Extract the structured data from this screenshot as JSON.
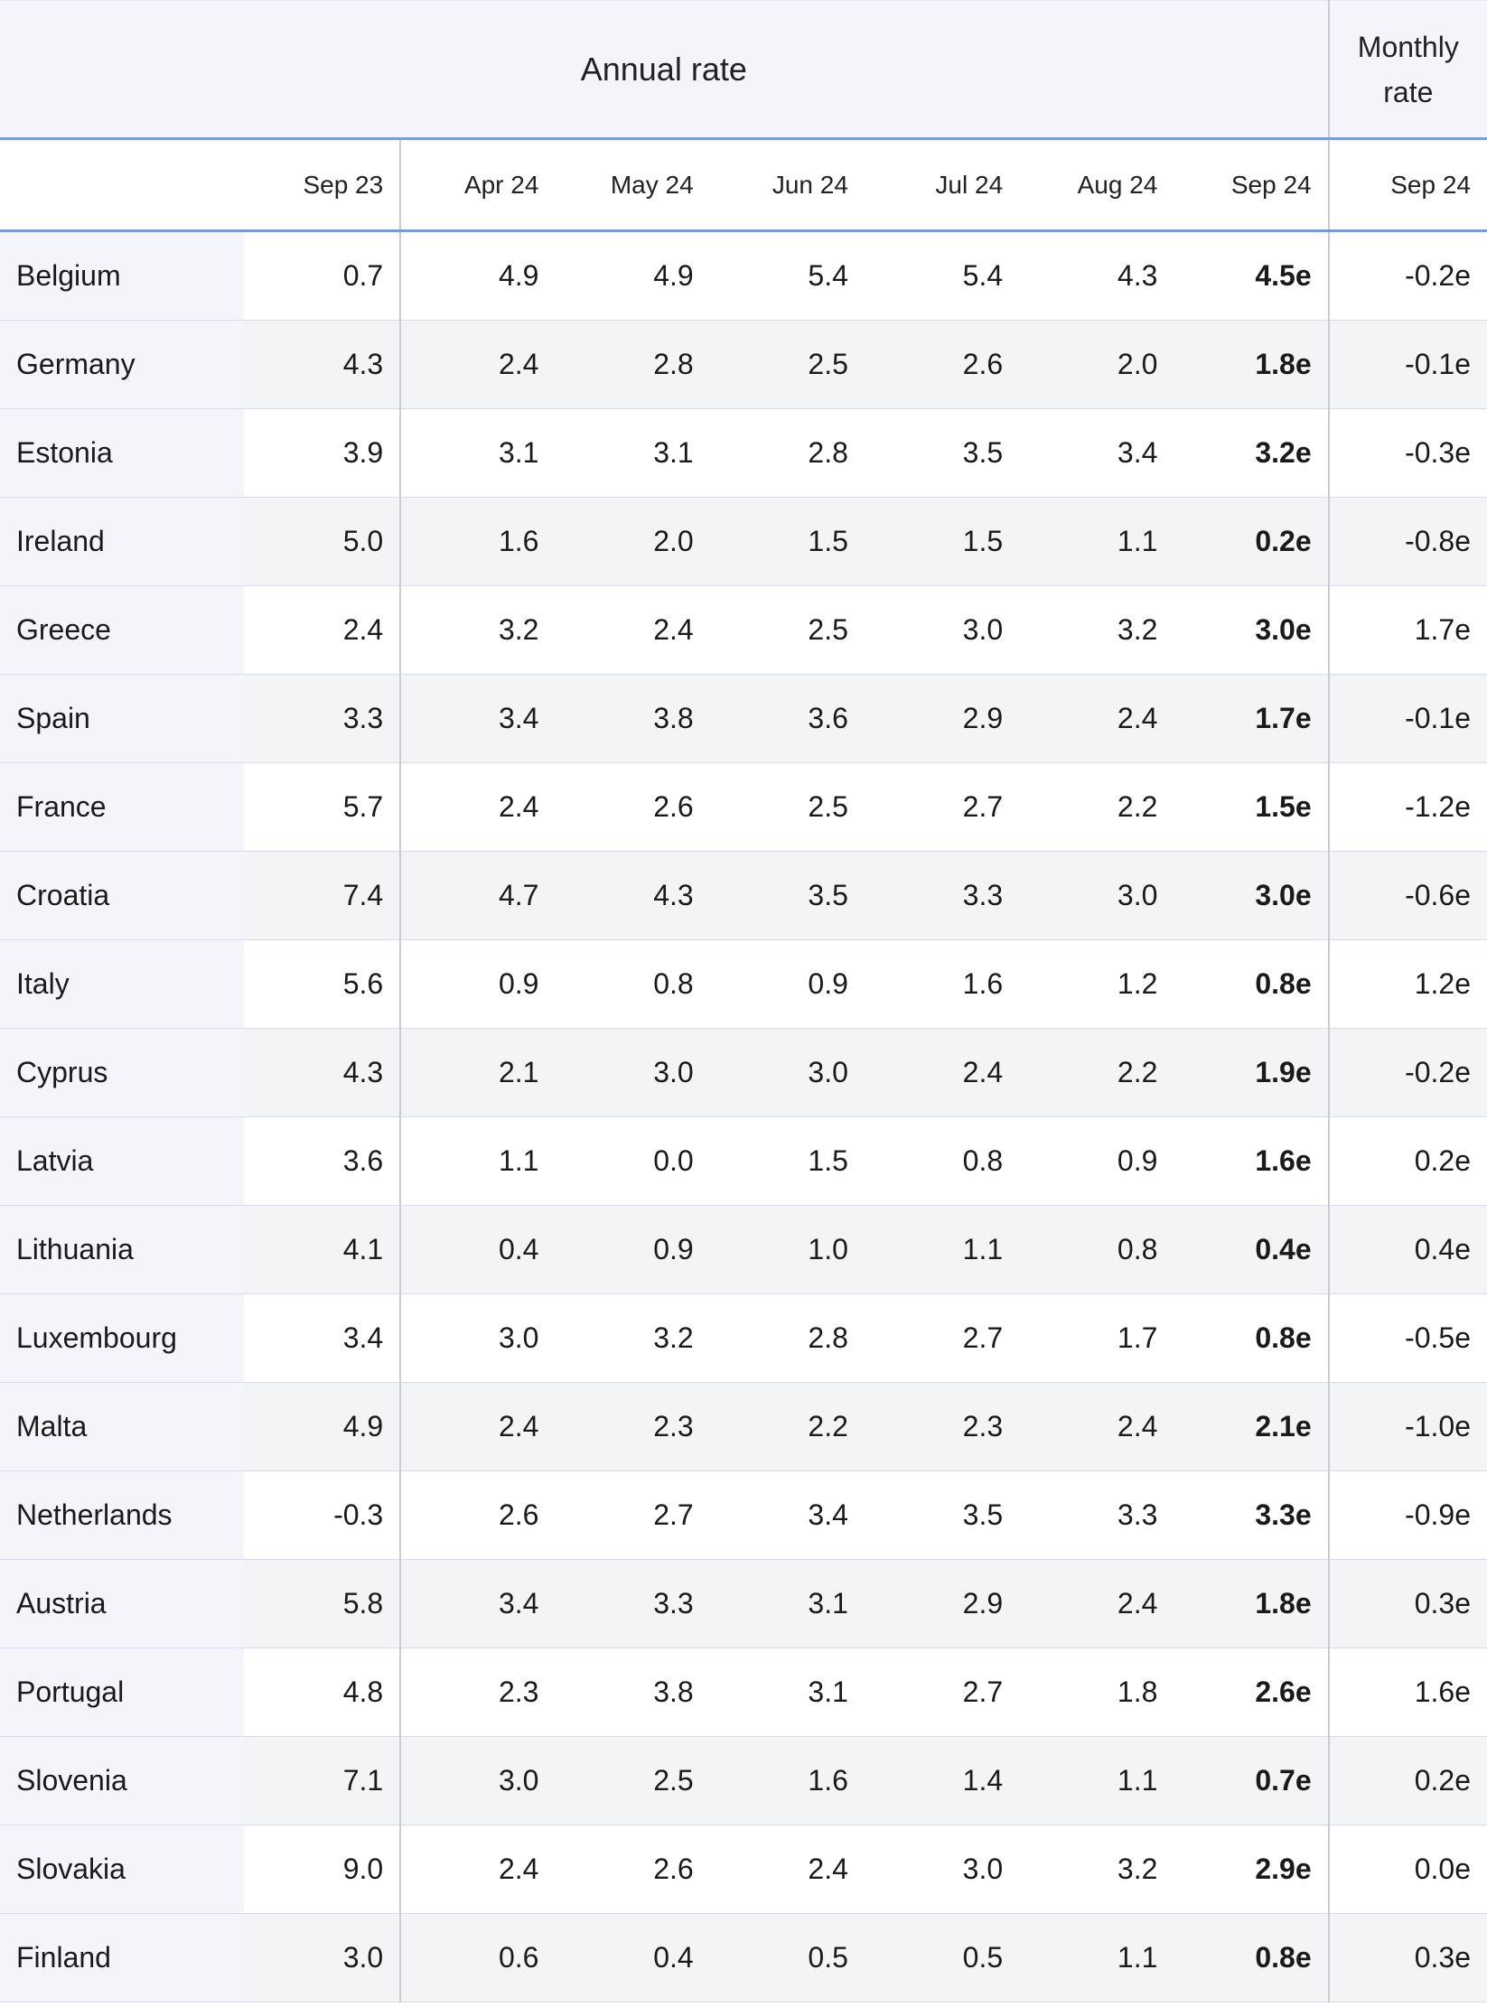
{
  "header": {
    "annual_rate": "Annual rate",
    "monthly_rate": "Monthly rate",
    "months": [
      "Sep 23",
      "Apr 24",
      "May 24",
      "Jun 24",
      "Jul 24",
      "Aug 24",
      "Sep 24"
    ],
    "monthly_month": "Sep 24"
  },
  "rows": [
    {
      "country": "Belgium",
      "values": [
        "0.7",
        "4.9",
        "4.9",
        "5.4",
        "5.4",
        "4.3",
        "4.5e"
      ],
      "monthly": "-0.2e"
    },
    {
      "country": "Germany",
      "values": [
        "4.3",
        "2.4",
        "2.8",
        "2.5",
        "2.6",
        "2.0",
        "1.8e"
      ],
      "monthly": "-0.1e"
    },
    {
      "country": "Estonia",
      "values": [
        "3.9",
        "3.1",
        "3.1",
        "2.8",
        "3.5",
        "3.4",
        "3.2e"
      ],
      "monthly": "-0.3e"
    },
    {
      "country": "Ireland",
      "values": [
        "5.0",
        "1.6",
        "2.0",
        "1.5",
        "1.5",
        "1.1",
        "0.2e"
      ],
      "monthly": "-0.8e"
    },
    {
      "country": "Greece",
      "values": [
        "2.4",
        "3.2",
        "2.4",
        "2.5",
        "3.0",
        "3.2",
        "3.0e"
      ],
      "monthly": "1.7e"
    },
    {
      "country": "Spain",
      "values": [
        "3.3",
        "3.4",
        "3.8",
        "3.6",
        "2.9",
        "2.4",
        "1.7e"
      ],
      "monthly": "-0.1e"
    },
    {
      "country": "France",
      "values": [
        "5.7",
        "2.4",
        "2.6",
        "2.5",
        "2.7",
        "2.2",
        "1.5e"
      ],
      "monthly": "-1.2e"
    },
    {
      "country": "Croatia",
      "values": [
        "7.4",
        "4.7",
        "4.3",
        "3.5",
        "3.3",
        "3.0",
        "3.0e"
      ],
      "monthly": "-0.6e"
    },
    {
      "country": "Italy",
      "values": [
        "5.6",
        "0.9",
        "0.8",
        "0.9",
        "1.6",
        "1.2",
        "0.8e"
      ],
      "monthly": "1.2e"
    },
    {
      "country": "Cyprus",
      "values": [
        "4.3",
        "2.1",
        "3.0",
        "3.0",
        "2.4",
        "2.2",
        "1.9e"
      ],
      "monthly": "-0.2e"
    },
    {
      "country": "Latvia",
      "values": [
        "3.6",
        "1.1",
        "0.0",
        "1.5",
        "0.8",
        "0.9",
        "1.6e"
      ],
      "monthly": "0.2e"
    },
    {
      "country": "Lithuania",
      "values": [
        "4.1",
        "0.4",
        "0.9",
        "1.0",
        "1.1",
        "0.8",
        "0.4e"
      ],
      "monthly": "0.4e"
    },
    {
      "country": "Luxembourg",
      "values": [
        "3.4",
        "3.0",
        "3.2",
        "2.8",
        "2.7",
        "1.7",
        "0.8e"
      ],
      "monthly": "-0.5e"
    },
    {
      "country": "Malta",
      "values": [
        "4.9",
        "2.4",
        "2.3",
        "2.2",
        "2.3",
        "2.4",
        "2.1e"
      ],
      "monthly": "-1.0e"
    },
    {
      "country": "Netherlands",
      "values": [
        "-0.3",
        "2.6",
        "2.7",
        "3.4",
        "3.5",
        "3.3",
        "3.3e"
      ],
      "monthly": "-0.9e"
    },
    {
      "country": "Austria",
      "values": [
        "5.8",
        "3.4",
        "3.3",
        "3.1",
        "2.9",
        "2.4",
        "1.8e"
      ],
      "monthly": "0.3e"
    },
    {
      "country": "Portugal",
      "values": [
        "4.8",
        "2.3",
        "3.8",
        "3.1",
        "2.7",
        "1.8",
        "2.6e"
      ],
      "monthly": "1.6e"
    },
    {
      "country": "Slovenia",
      "values": [
        "7.1",
        "3.0",
        "2.5",
        "1.6",
        "1.4",
        "1.1",
        "0.7e"
      ],
      "monthly": "0.2e"
    },
    {
      "country": "Slovakia",
      "values": [
        "9.0",
        "2.4",
        "2.6",
        "2.4",
        "3.0",
        "3.2",
        "2.9e"
      ],
      "monthly": "0.0e"
    },
    {
      "country": "Finland",
      "values": [
        "3.0",
        "0.6",
        "0.4",
        "0.5",
        "0.5",
        "1.1",
        "0.8e"
      ],
      "monthly": "0.3e"
    }
  ]
}
